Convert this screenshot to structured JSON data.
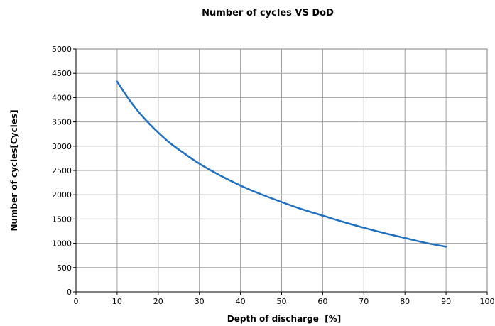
{
  "chart_data": {
    "type": "line",
    "title": "Number of cycles VS DoD",
    "xlabel": "Depth of discharge  [%]",
    "ylabel": "Number of cycles[Cycles]",
    "xlim": [
      0,
      100
    ],
    "ylim": [
      0,
      5000
    ],
    "x_ticks": [
      "0",
      "10",
      "20",
      "30",
      "40",
      "50",
      "60",
      "70",
      "80",
      "90",
      "100"
    ],
    "y_ticks": [
      "0",
      "500",
      "1000",
      "1500",
      "2000",
      "2500",
      "3000",
      "3500",
      "4000",
      "4500",
      "5000"
    ],
    "grid": true,
    "legend": "none",
    "series": [
      {
        "color": "#1f6fc0",
        "x": [
          10,
          12.5,
          15,
          17.5,
          20,
          22.5,
          25,
          30,
          35,
          40,
          45,
          50,
          55,
          60,
          65,
          70,
          75,
          80,
          85,
          90
        ],
        "y": [
          4330,
          4010,
          3730,
          3490,
          3280,
          3090,
          2930,
          2640,
          2400,
          2190,
          2010,
          1850,
          1700,
          1570,
          1440,
          1320,
          1210,
          1110,
          1010,
          930
        ]
      }
    ]
  }
}
